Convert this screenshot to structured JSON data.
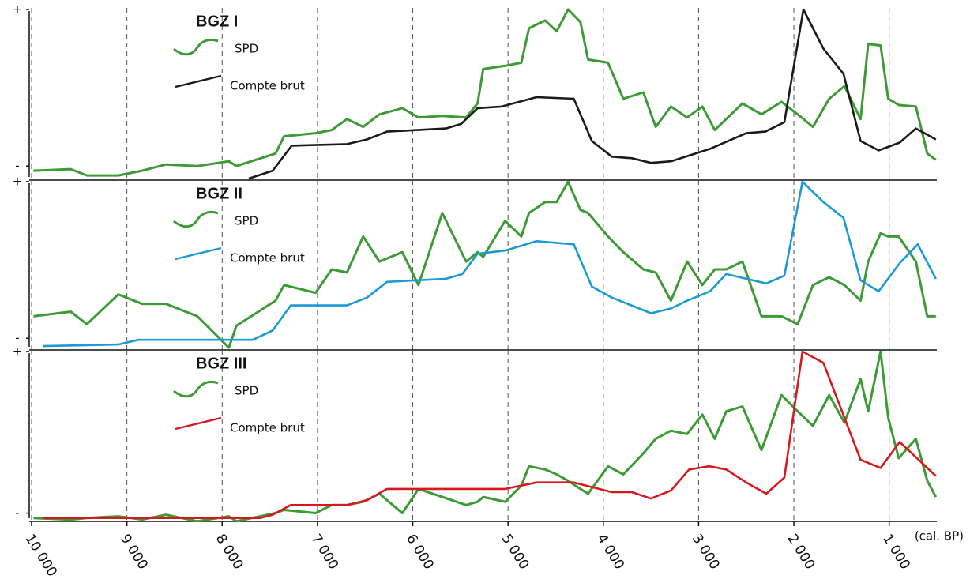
{
  "chart_data": [
    {
      "type": "line",
      "title": "BGZ I",
      "xlim": [
        10000,
        500
      ],
      "ylim": [
        -10,
        100
      ],
      "yticks": [
        {
          "value": 100,
          "label": "+"
        },
        {
          "value": 0,
          "label": "-"
        }
      ],
      "grid": true,
      "series": [
        {
          "name": "SPD",
          "color": "#3d9b35",
          "x": [
            9980,
            9590,
            9420,
            9090,
            8840,
            8590,
            8260,
            7930,
            7850,
            7440,
            7350,
            7020,
            6850,
            6690,
            6520,
            6350,
            6110,
            5940,
            5690,
            5440,
            5320,
            5260,
            5030,
            4860,
            4780,
            4610,
            4490,
            4370,
            4240,
            4160,
            3950,
            3790,
            3580,
            3450,
            3290,
            3120,
            2960,
            2830,
            2710,
            2540,
            2340,
            2130,
            1960,
            1800,
            1630,
            1470,
            1300,
            1220,
            1090,
            1010,
            900,
            720,
            600,
            510
          ],
          "values": [
            -3,
            -2,
            -6,
            -6,
            -3,
            1,
            0,
            3,
            0,
            8,
            19,
            21,
            23,
            30,
            25,
            33,
            37,
            31,
            32,
            31,
            40,
            62,
            64,
            66,
            88,
            93,
            86,
            100,
            92,
            68,
            66,
            43,
            47,
            25,
            38,
            31,
            38,
            23,
            30,
            40,
            33,
            41,
            33,
            25,
            43,
            51,
            30,
            78,
            77,
            43,
            39,
            38,
            8,
            4
          ]
        },
        {
          "name": "Compte brut",
          "color": "#1a1a1a",
          "x": [
            7720,
            7470,
            7270,
            6690,
            6480,
            6270,
            5650,
            5490,
            5320,
            5070,
            4700,
            4310,
            4120,
            3910,
            3700,
            3500,
            3290,
            2880,
            2500,
            2300,
            2100,
            1900,
            1690,
            1480,
            1300,
            1110,
            890,
            720,
            510
          ],
          "values": [
            -8,
            -3,
            13,
            14,
            17,
            22,
            24,
            27,
            37,
            38,
            44,
            43,
            16,
            6,
            5,
            2,
            3,
            11,
            21,
            22,
            28,
            100,
            75,
            59,
            16,
            10,
            15,
            24,
            17
          ]
        }
      ]
    },
    {
      "type": "line",
      "title": "BGZ II",
      "xlim": [
        10000,
        500
      ],
      "ylim": [
        -10,
        100
      ],
      "yticks": [
        {
          "value": 100,
          "label": "+"
        },
        {
          "value": 0,
          "label": "-"
        }
      ],
      "grid": true,
      "series": [
        {
          "name": "SPD",
          "color": "#3d9b35",
          "x": [
            9980,
            9590,
            9420,
            9090,
            8840,
            8590,
            8260,
            7930,
            7850,
            7440,
            7350,
            7020,
            6850,
            6690,
            6520,
            6350,
            6110,
            5940,
            5690,
            5440,
            5320,
            5260,
            5030,
            4860,
            4780,
            4610,
            4490,
            4370,
            4240,
            4160,
            3950,
            3790,
            3580,
            3450,
            3290,
            3120,
            2960,
            2830,
            2710,
            2540,
            2340,
            2130,
            1960,
            1800,
            1630,
            1470,
            1300,
            1220,
            1090,
            1010,
            900,
            720,
            600,
            510
          ],
          "values": [
            14,
            17,
            9,
            28,
            22,
            22,
            14,
            -6,
            8,
            24,
            34,
            29,
            44,
            42,
            65,
            49,
            55,
            34,
            80,
            49,
            55,
            52,
            75,
            65,
            80,
            87,
            87,
            100,
            82,
            80,
            65,
            55,
            44,
            42,
            24,
            49,
            34,
            44,
            44,
            49,
            14,
            14,
            9,
            34,
            39,
            34,
            24,
            49,
            67,
            65,
            65,
            49,
            14,
            14
          ]
        },
        {
          "name": "Compte brut",
          "color": "#1b9ad6",
          "x": [
            9880,
            9090,
            8880,
            7680,
            7470,
            7280,
            6690,
            6480,
            6270,
            5650,
            5480,
            5320,
            5030,
            4700,
            4310,
            4120,
            3910,
            3500,
            3290,
            3120,
            2880,
            2710,
            2500,
            2290,
            2100,
            1910,
            1690,
            1480,
            1300,
            1110,
            890,
            700,
            510
          ],
          "values": [
            -5,
            -4,
            -1,
            -1,
            5,
            21,
            21,
            26,
            36,
            38,
            41,
            54,
            56,
            62,
            60,
            33,
            26,
            16,
            19,
            24,
            30,
            41,
            38,
            35,
            40,
            100,
            87,
            77,
            37,
            30,
            48,
            60,
            38
          ]
        }
      ]
    },
    {
      "type": "line",
      "title": "BGZ III",
      "xlim": [
        10000,
        500
      ],
      "ylim": [
        -10,
        100
      ],
      "yticks": [
        {
          "value": 100,
          "label": "+"
        },
        {
          "value": 0,
          "label": "-"
        }
      ],
      "grid": true,
      "xlabel": "(cal. BP)",
      "xticks": [
        {
          "value": 10000,
          "label": "10 000"
        },
        {
          "value": 9000,
          "label": "9 000"
        },
        {
          "value": 8000,
          "label": "8 000"
        },
        {
          "value": 7000,
          "label": "7 000"
        },
        {
          "value": 6000,
          "label": "6 000"
        },
        {
          "value": 5000,
          "label": "5 000"
        },
        {
          "value": 4000,
          "label": "4 000"
        },
        {
          "value": 3000,
          "label": "3 000"
        },
        {
          "value": 2000,
          "label": "2 000"
        },
        {
          "value": 1000,
          "label": "1 000"
        }
      ],
      "series": [
        {
          "name": "SPD",
          "color": "#3d9b35",
          "x": [
            9980,
            9590,
            9420,
            9090,
            8840,
            8590,
            8260,
            7930,
            7850,
            7440,
            7350,
            7020,
            6850,
            6690,
            6520,
            6350,
            6110,
            5940,
            5690,
            5440,
            5320,
            5260,
            5030,
            4860,
            4780,
            4610,
            4490,
            4370,
            4240,
            4160,
            3950,
            3790,
            3580,
            3450,
            3290,
            3120,
            2960,
            2830,
            2710,
            2540,
            2340,
            2130,
            1960,
            1800,
            1630,
            1470,
            1300,
            1220,
            1090,
            1010,
            900,
            720,
            600,
            510
          ],
          "values": [
            -3,
            -4,
            -3,
            -2,
            -4,
            -1,
            -5,
            -2,
            -5,
            0,
            2,
            0,
            5,
            5,
            7,
            12,
            0,
            15,
            10,
            5,
            7,
            10,
            7,
            17,
            29,
            27,
            24,
            20,
            15,
            12,
            29,
            24,
            37,
            46,
            51,
            49,
            61,
            46,
            63,
            66,
            39,
            73,
            63,
            54,
            73,
            56,
            83,
            63,
            100,
            59,
            34,
            46,
            20,
            10
          ]
        },
        {
          "name": "Compte brut",
          "color": "#d7191f",
          "x": [
            9880,
            7600,
            7470,
            7280,
            6690,
            6480,
            6270,
            5030,
            4700,
            4310,
            3910,
            3700,
            3500,
            3290,
            3100,
            2890,
            2710,
            2500,
            2290,
            2100,
            1910,
            1690,
            1300,
            1090,
            890,
            510
          ],
          "values": [
            -3,
            -3,
            -1,
            5,
            5,
            8,
            15,
            15,
            19,
            19,
            13,
            13,
            9,
            14,
            27,
            29,
            27,
            19,
            12,
            22,
            100,
            93,
            33,
            28,
            44,
            23
          ]
        }
      ]
    }
  ]
}
